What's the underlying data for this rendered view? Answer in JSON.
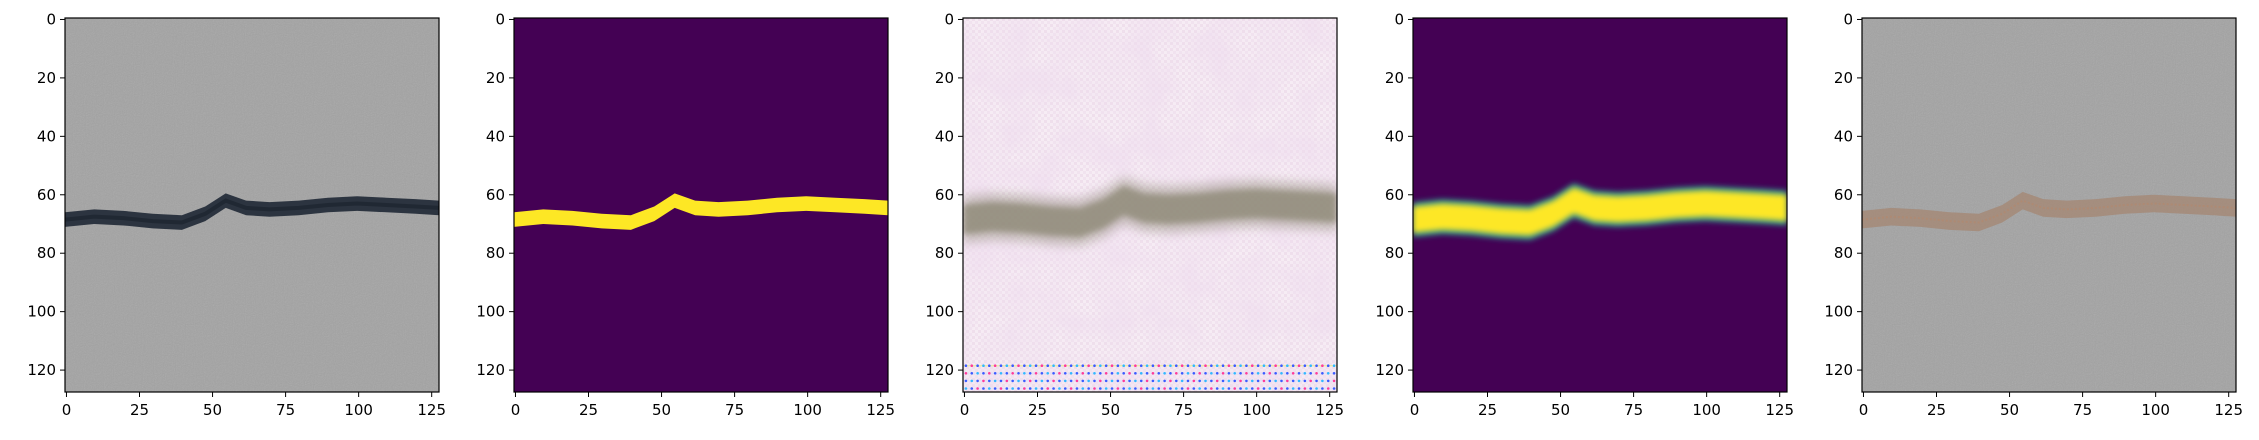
{
  "figure": {
    "panels": [
      {
        "id": "input-image",
        "kind": "photo-original"
      },
      {
        "id": "ground-truth-mask",
        "kind": "mask-binary"
      },
      {
        "id": "reconstruction",
        "kind": "photo-artifact"
      },
      {
        "id": "predicted-mask",
        "kind": "mask-soft"
      },
      {
        "id": "overlay",
        "kind": "photo-overlay"
      }
    ],
    "x_ticks": [
      "0",
      "25",
      "50",
      "75",
      "100",
      "125"
    ],
    "y_ticks": [
      "0",
      "20",
      "40",
      "60",
      "80",
      "100",
      "120"
    ],
    "x_tick_values": [
      0,
      25,
      50,
      75,
      100,
      125
    ],
    "y_tick_values": [
      0,
      20,
      40,
      60,
      80,
      100,
      120
    ],
    "image_size": [
      128,
      128
    ],
    "crack_centerline": [
      [
        0,
        69
      ],
      [
        10,
        68
      ],
      [
        20,
        68.5
      ],
      [
        30,
        69.5
      ],
      [
        40,
        70
      ],
      [
        48,
        67
      ],
      [
        55,
        62.5
      ],
      [
        62,
        65
      ],
      [
        70,
        65.5
      ],
      [
        80,
        65
      ],
      [
        90,
        64
      ],
      [
        100,
        63.5
      ],
      [
        110,
        64
      ],
      [
        120,
        64.5
      ],
      [
        128,
        65
      ]
    ],
    "colors": {
      "photo_gray": "#a3a3a3",
      "crack_dark": "#2c3440",
      "mask_background": "#440154",
      "mask_foreground": "#fde725",
      "reconstruction_background": "#f4e6f0",
      "reconstruction_band": "#8f8a78",
      "overlay_crack": "#a48a78"
    }
  }
}
